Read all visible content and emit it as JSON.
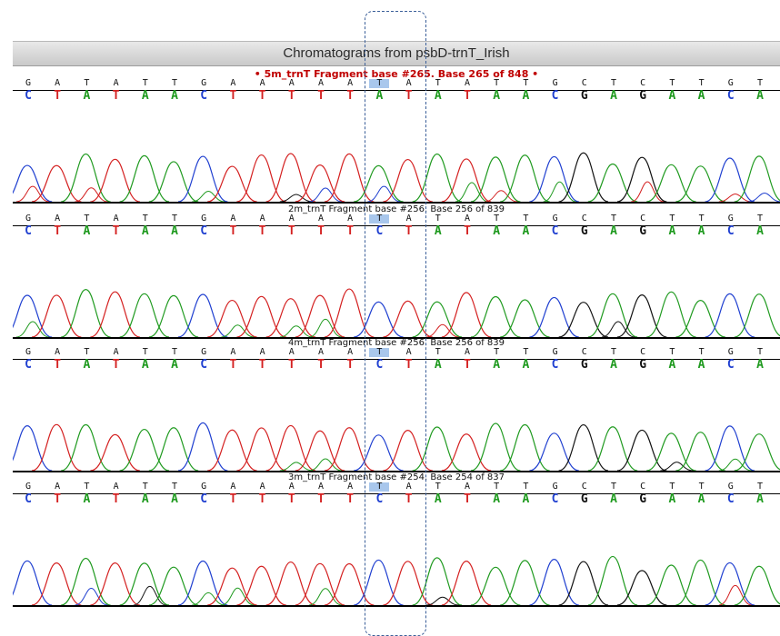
{
  "window": {
    "title": "Chromatograms from psbD-trnT_Irish"
  },
  "colors": {
    "A": "#1f9a1f",
    "C": "#1f3fd0",
    "G": "#111111",
    "T": "#d42020",
    "highlight": "#a9c7ec",
    "selected_header": "#c00000"
  },
  "consensus": [
    "G",
    "A",
    "T",
    "A",
    "T",
    "T",
    "G",
    "A",
    "A",
    "A",
    "A",
    "A",
    "T",
    "A",
    "T",
    "A",
    "T",
    "T",
    "G",
    "C",
    "T",
    "C",
    "T",
    "T",
    "G",
    "T"
  ],
  "panels": [
    {
      "header": "• 5m_trnT Fragment base #265. Base 265 of 848 •",
      "selected": true,
      "calls": [
        "C",
        "T",
        "A",
        "T",
        "A",
        "A",
        "C",
        "T",
        "T",
        "T",
        "T",
        "T",
        "A",
        "T",
        "A",
        "T",
        "A",
        "A",
        "C",
        "G",
        "A",
        "G",
        "A",
        "A",
        "C",
        "A"
      ]
    },
    {
      "header": "2m_trnT Fragment base #256. Base 256 of 839",
      "selected": false,
      "calls": [
        "C",
        "T",
        "A",
        "T",
        "A",
        "A",
        "C",
        "T",
        "T",
        "T",
        "T",
        "T",
        "C",
        "T",
        "A",
        "T",
        "A",
        "A",
        "C",
        "G",
        "A",
        "G",
        "A",
        "A",
        "C",
        "A"
      ]
    },
    {
      "header": "4m_trnT Fragment base #256. Base 256 of 839",
      "selected": false,
      "calls": [
        "C",
        "T",
        "A",
        "T",
        "A",
        "A",
        "C",
        "T",
        "T",
        "T",
        "T",
        "T",
        "C",
        "T",
        "A",
        "T",
        "A",
        "A",
        "C",
        "G",
        "A",
        "G",
        "A",
        "A",
        "C",
        "A"
      ]
    },
    {
      "header": "3m_trnT Fragment base #254. Base 254 of 837",
      "selected": false,
      "calls": [
        "C",
        "T",
        "A",
        "T",
        "A",
        "A",
        "C",
        "T",
        "T",
        "T",
        "T",
        "T",
        "C",
        "T",
        "A",
        "T",
        "A",
        "A",
        "C",
        "G",
        "A",
        "G",
        "A",
        "A",
        "C",
        "A"
      ]
    }
  ]
}
